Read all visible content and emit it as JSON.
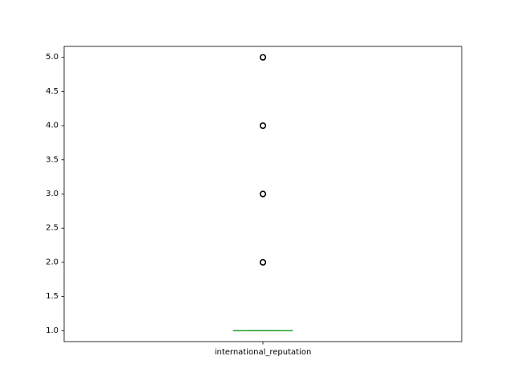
{
  "chart_data": {
    "type": "box",
    "title": "",
    "xlabel": "",
    "ylabel": "",
    "categories": [
      "international_reputation"
    ],
    "ylim": [
      0.84,
      5.16
    ],
    "yticks": [
      1.0,
      1.5,
      2.0,
      2.5,
      3.0,
      3.5,
      4.0,
      4.5,
      5.0
    ],
    "ytick_labels": [
      "1.0",
      "1.5",
      "2.0",
      "2.5",
      "3.0",
      "3.5",
      "4.0",
      "4.5",
      "5.0"
    ],
    "grid": false,
    "box": {
      "q1": 1.0,
      "median": 1.0,
      "q3": 1.0,
      "whisker_low": 1.0,
      "whisker_high": 1.0,
      "fliers": [
        2.0,
        3.0,
        4.0,
        5.0
      ]
    },
    "colors": {
      "box": "#1f77b4",
      "median": "#2ca02c",
      "whisker": "#1f77b4",
      "flier_edge": "#000000"
    }
  }
}
